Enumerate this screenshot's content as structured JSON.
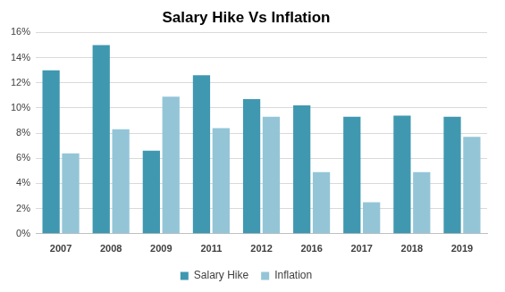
{
  "chart_data": {
    "type": "bar",
    "title": "Salary Hike Vs Inflation",
    "categories": [
      "2007",
      "2008",
      "2009",
      "2011",
      "2012",
      "2016",
      "2017",
      "2018",
      "2019"
    ],
    "series": [
      {
        "name": "Salary Hike",
        "color": "#3f98b0",
        "values": [
          13.0,
          15.0,
          6.6,
          12.6,
          10.7,
          10.2,
          9.3,
          9.4,
          9.3
        ]
      },
      {
        "name": "Inflation",
        "color": "#93c5d7",
        "values": [
          6.4,
          8.3,
          10.9,
          8.4,
          9.3,
          4.9,
          2.5,
          4.9,
          7.7
        ]
      }
    ],
    "ylim": [
      0,
      16
    ],
    "yticks": [
      {
        "value": 0,
        "label": "0%"
      },
      {
        "value": 2,
        "label": "2%"
      },
      {
        "value": 4,
        "label": "4%"
      },
      {
        "value": 6,
        "label": "6%"
      },
      {
        "value": 8,
        "label": "8%"
      },
      {
        "value": 10,
        "label": "10%"
      },
      {
        "value": 12,
        "label": "12%"
      },
      {
        "value": 14,
        "label": "14%"
      },
      {
        "value": 16,
        "label": "16%"
      }
    ],
    "grid": true,
    "legend": "bottom"
  }
}
